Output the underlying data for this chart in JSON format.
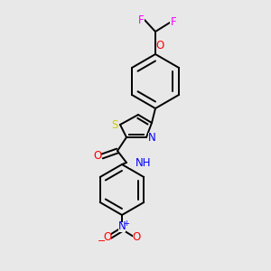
{
  "bg_color": "#e8e8e8",
  "bond_color": "#000000",
  "atom_colors": {
    "F": "#ff00ff",
    "O": "#ff0000",
    "N": "#0000ff",
    "S": "#cccc00",
    "H": "#008080"
  },
  "figsize": [
    3.0,
    3.0
  ],
  "dpi": 100
}
